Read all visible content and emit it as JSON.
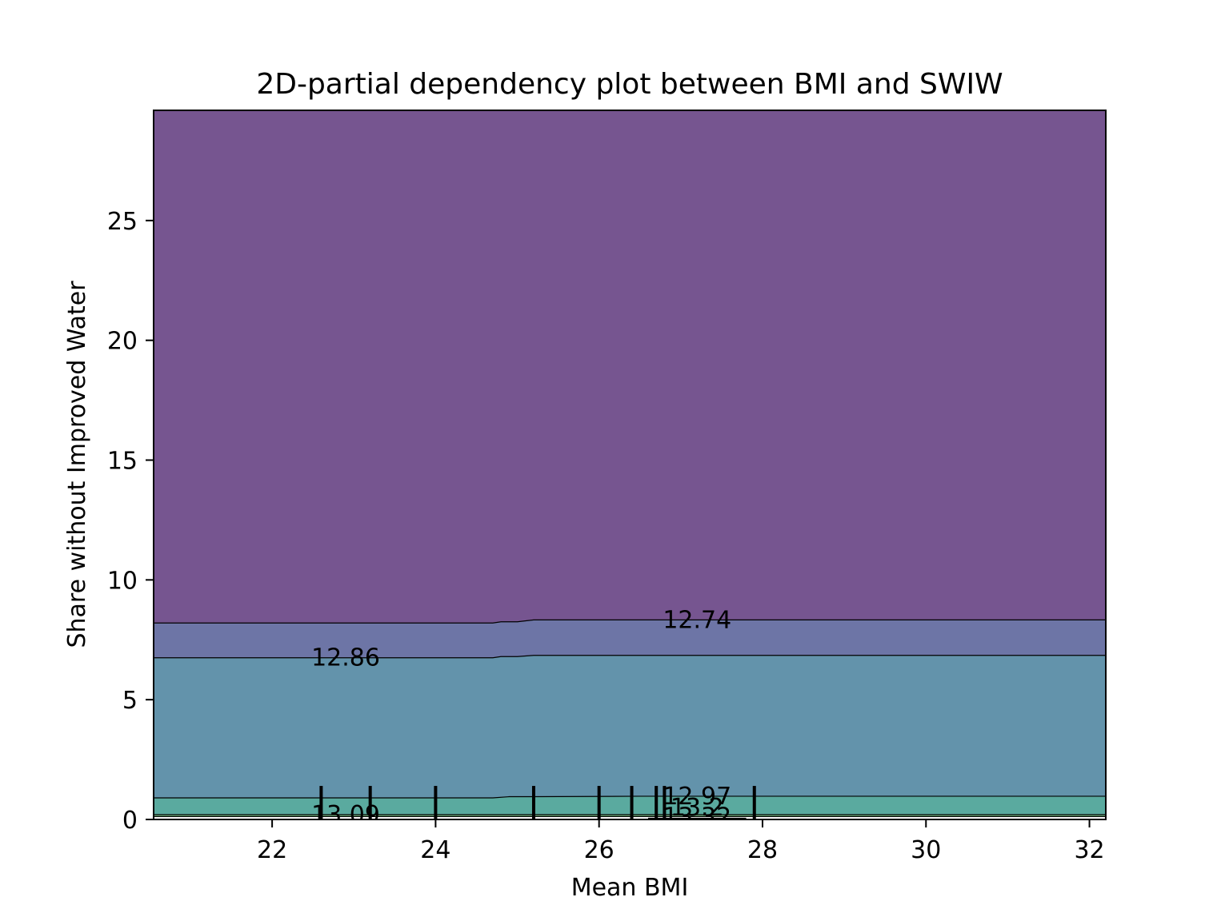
{
  "chart_data": {
    "type": "contour",
    "title": "2D-partial dependency plot between BMI and SWIW",
    "xlabel": "Mean BMI",
    "ylabel": "Share without Improved Water",
    "xlim": [
      20.55,
      32.2
    ],
    "ylim": [
      0,
      29.6
    ],
    "x_ticks": [
      22,
      24,
      26,
      28,
      30,
      32
    ],
    "y_ticks": [
      0,
      5,
      10,
      15,
      20,
      25
    ],
    "grid": false,
    "contour_levels": [
      12.74,
      12.86,
      12.97,
      13.09,
      13.21,
      13.32
    ],
    "contour_labels": [
      "12.74",
      "12.86",
      "12.97",
      "13.09",
      "13.2",
      "13.32"
    ],
    "bands": [
      {
        "lower": null,
        "upper": 12.74,
        "color": "#765590"
      },
      {
        "lower": 12.74,
        "upper": 12.86,
        "color": "#6d75a6"
      },
      {
        "lower": 12.86,
        "upper": 12.97,
        "color": "#6393ab"
      },
      {
        "lower": 12.97,
        "upper": 13.09,
        "color": "#5aaa9f"
      },
      {
        "lower": 13.09,
        "upper": 13.21,
        "color": "#7ac189"
      },
      {
        "lower": 13.21,
        "upper": 13.32,
        "color": "#b3d45e"
      }
    ],
    "contours": [
      {
        "level": 12.74,
        "points": [
          [
            20.55,
            8.2
          ],
          [
            24.7,
            8.2
          ],
          [
            24.8,
            8.25
          ],
          [
            25.0,
            8.25
          ],
          [
            25.2,
            8.33
          ],
          [
            32.2,
            8.33
          ]
        ]
      },
      {
        "level": 12.86,
        "points": [
          [
            20.55,
            6.75
          ],
          [
            24.7,
            6.75
          ],
          [
            24.8,
            6.8
          ],
          [
            25.0,
            6.8
          ],
          [
            25.2,
            6.85
          ],
          [
            32.2,
            6.85
          ]
        ]
      },
      {
        "level": 12.97,
        "points": [
          [
            20.55,
            0.9
          ],
          [
            24.7,
            0.9
          ],
          [
            24.9,
            0.95
          ],
          [
            25.2,
            0.95
          ],
          [
            26.5,
            0.97
          ],
          [
            32.2,
            0.97
          ]
        ]
      },
      {
        "level": 13.09,
        "points": [
          [
            20.55,
            0.2
          ],
          [
            32.2,
            0.2
          ]
        ]
      },
      {
        "level": 13.21,
        "points": [
          [
            20.55,
            0.12
          ],
          [
            32.2,
            0.12
          ]
        ]
      },
      {
        "level": 13.32,
        "points": [
          [
            26.6,
            0.05
          ],
          [
            27.8,
            0.05
          ]
        ]
      }
    ],
    "contour_label_positions": [
      {
        "text": "12.74",
        "x": 27.2,
        "y": 8.33
      },
      {
        "text": "12.86",
        "x": 22.9,
        "y": 6.75
      },
      {
        "text": "12.97",
        "x": 27.2,
        "y": 0.97
      },
      {
        "text": "13.09",
        "x": 22.9,
        "y": 0.2
      },
      {
        "text": "13.2",
        "x": 27.2,
        "y": 0.5
      },
      {
        "text": "13.32",
        "x": 27.2,
        "y": 0.12
      }
    ],
    "rug_x": [
      22.6,
      23.2,
      24.0,
      25.2,
      26.0,
      26.4,
      26.7,
      26.8,
      27.9
    ],
    "rug_y_top": 1.4
  }
}
